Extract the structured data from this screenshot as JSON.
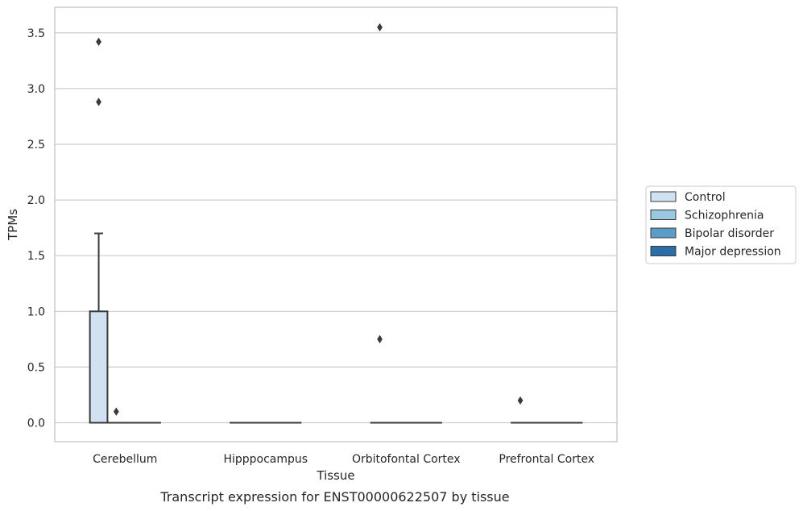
{
  "caption": "Transcript expression for ENST00000622507 by tissue",
  "chart_data": {
    "type": "box",
    "title": "",
    "xlabel": "Tissue",
    "ylabel": "TPMs",
    "ylim": [
      -0.17,
      3.73
    ],
    "yticks": [
      "0.0",
      "0.5",
      "1.0",
      "1.5",
      "2.0",
      "2.5",
      "3.0",
      "3.5"
    ],
    "grid": "horizontal",
    "legend_position": "right",
    "categories": [
      "Cerebellum",
      "Hipppocampus",
      "Orbitofontal Cortex",
      "Prefrontal Cortex"
    ],
    "series": [
      {
        "name": "Control",
        "color": "#d0e1f2",
        "boxes": [
          {
            "q1": 0,
            "median": 0,
            "q3": 1.0,
            "whisker_low": 0,
            "whisker_high": 1.7,
            "outliers": [
              2.88,
              3.42
            ]
          },
          {
            "q1": 0,
            "median": 0,
            "q3": 0,
            "whisker_low": 0,
            "whisker_high": 0,
            "outliers": []
          },
          {
            "q1": 0,
            "median": 0,
            "q3": 0,
            "whisker_low": 0,
            "whisker_high": 0,
            "outliers": [
              0.75,
              3.55
            ]
          },
          {
            "q1": 0,
            "median": 0,
            "q3": 0,
            "whisker_low": 0,
            "whisker_high": 0,
            "outliers": [
              0.2
            ]
          }
        ]
      },
      {
        "name": "Schizophrenia",
        "color": "#9ac8e0",
        "boxes": [
          {
            "q1": 0,
            "median": 0,
            "q3": 0,
            "whisker_low": 0,
            "whisker_high": 0,
            "outliers": [
              0.1
            ]
          },
          {
            "q1": 0,
            "median": 0,
            "q3": 0,
            "whisker_low": 0,
            "whisker_high": 0,
            "outliers": []
          },
          {
            "q1": 0,
            "median": 0,
            "q3": 0,
            "whisker_low": 0,
            "whisker_high": 0,
            "outliers": []
          },
          {
            "q1": 0,
            "median": 0,
            "q3": 0,
            "whisker_low": 0,
            "whisker_high": 0,
            "outliers": []
          }
        ]
      },
      {
        "name": "Bipolar disorder",
        "color": "#5a9ec8",
        "boxes": [
          {
            "q1": 0,
            "median": 0,
            "q3": 0,
            "whisker_low": 0,
            "whisker_high": 0,
            "outliers": []
          },
          {
            "q1": 0,
            "median": 0,
            "q3": 0,
            "whisker_low": 0,
            "whisker_high": 0,
            "outliers": []
          },
          {
            "q1": 0,
            "median": 0,
            "q3": 0,
            "whisker_low": 0,
            "whisker_high": 0,
            "outliers": []
          },
          {
            "q1": 0,
            "median": 0,
            "q3": 0,
            "whisker_low": 0,
            "whisker_high": 0,
            "outliers": []
          }
        ]
      },
      {
        "name": "Major depression",
        "color": "#2c6da8",
        "boxes": [
          {
            "q1": 0,
            "median": 0,
            "q3": 0,
            "whisker_low": 0,
            "whisker_high": 0,
            "outliers": []
          },
          {
            "q1": 0,
            "median": 0,
            "q3": 0,
            "whisker_low": 0,
            "whisker_high": 0,
            "outliers": []
          },
          {
            "q1": 0,
            "median": 0,
            "q3": 0,
            "whisker_low": 0,
            "whisker_high": 0,
            "outliers": []
          },
          {
            "q1": 0,
            "median": 0,
            "q3": 0,
            "whisker_low": 0,
            "whisker_high": 0,
            "outliers": []
          }
        ]
      }
    ]
  }
}
